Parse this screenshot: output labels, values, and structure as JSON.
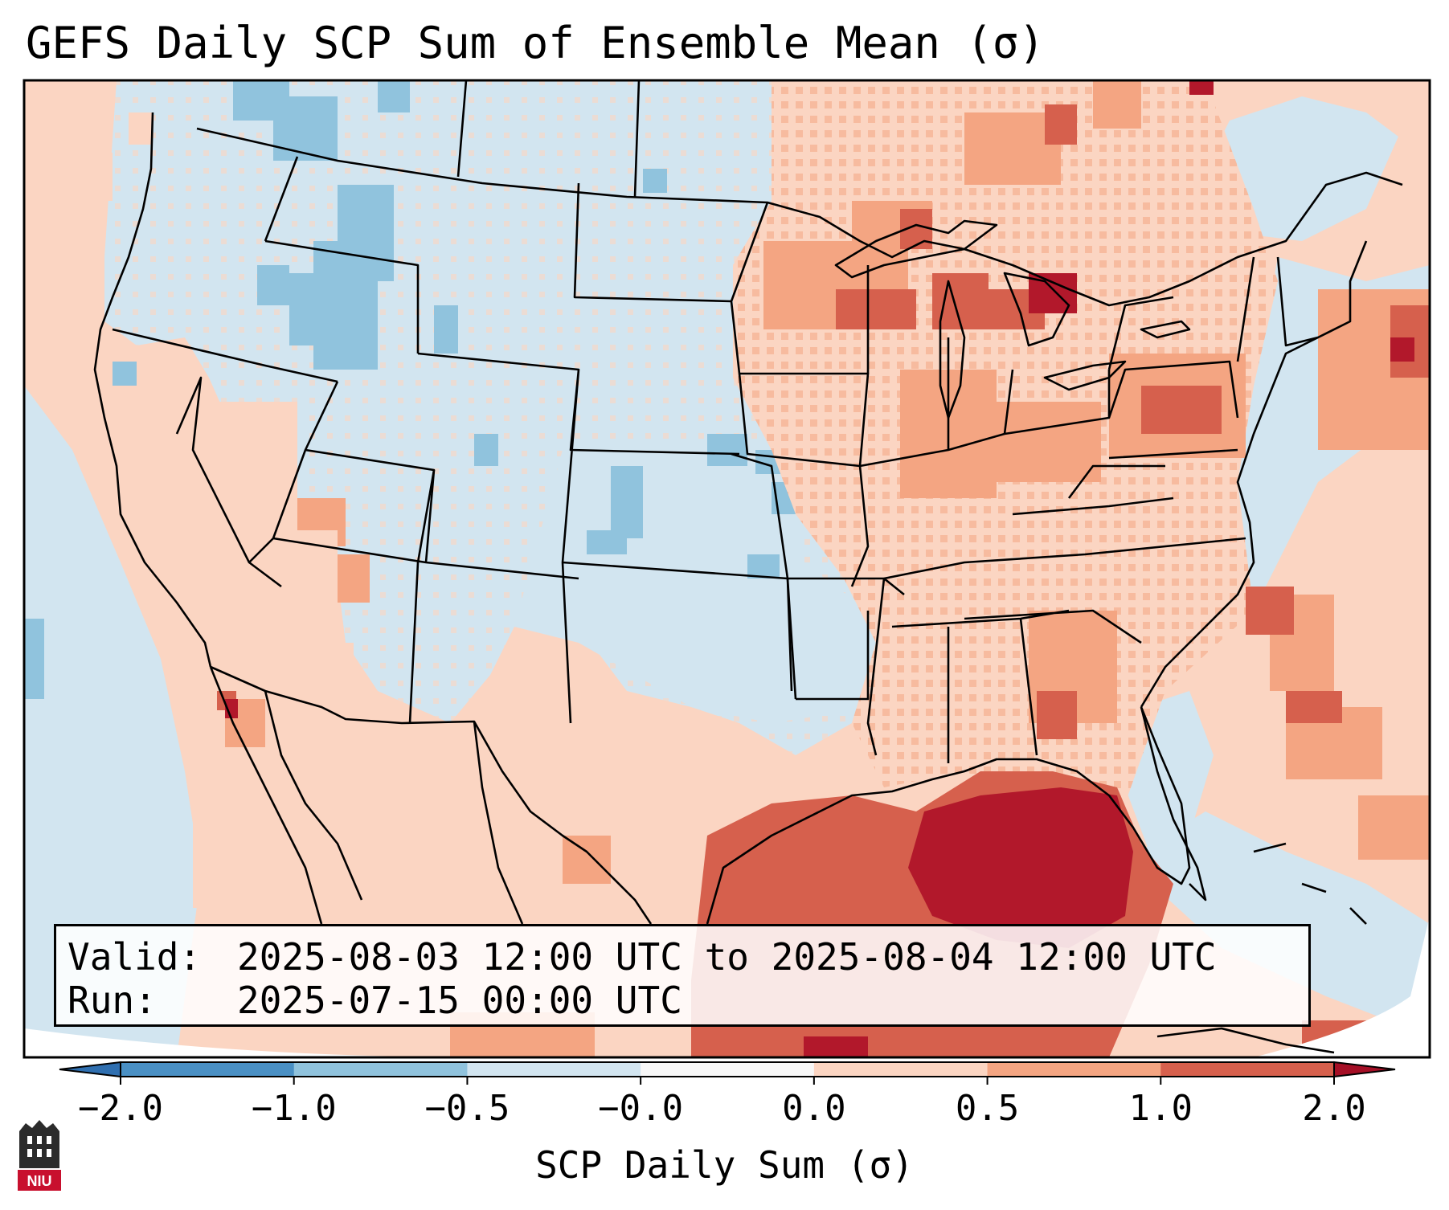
{
  "title": "GEFS Daily SCP Sum of Ensemble Mean (σ)",
  "info": {
    "valid_label": "Valid:",
    "valid_value": "2025-08-03 12:00 UTC to 2025-08-04 12:00 UTC",
    "run_label": "Run:",
    "run_value": "2025-07-15 00:00 UTC"
  },
  "colorbar": {
    "label": "SCP Daily Sum (σ)",
    "ticks": [
      "−2.0",
      "−1.0",
      "−0.5",
      "−0.0",
      "0.0",
      "0.5",
      "1.0",
      "2.0"
    ],
    "colors": [
      "#4a90c4",
      "#90c3dd",
      "#d2e5f0",
      "#f7f7f7",
      "#fbd5c2",
      "#f4a582",
      "#d6604d",
      "#b2182b"
    ],
    "extend_low_color": "#2f6fb0",
    "extend_high_color": "#a50f26"
  },
  "legend_colors": {
    "strong_neg": "#90c3dd",
    "neg": "#d2e5f0",
    "pos": "#fbd5c2",
    "mid_pos": "#f4a582",
    "high_pos": "#d6604d",
    "max_pos": "#b2182b"
  },
  "logo": {
    "text": "NIU",
    "color": "#c8102e"
  }
}
